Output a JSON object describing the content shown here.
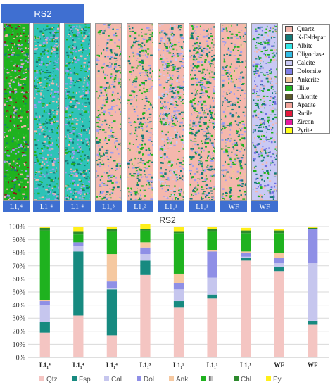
{
  "header": {
    "title": "RS2"
  },
  "strips": [
    {
      "label": "L1₁⁴",
      "colors": [
        "#1fb21f",
        "#27c127",
        "#f4b7ad",
        "#137a76",
        "#9d9df0",
        "#8b1a1a"
      ]
    },
    {
      "label": "L1₁⁴",
      "colors": [
        "#2ec3b7",
        "#137a76",
        "#1fb21f",
        "#f4b7ad",
        "#9d9df0"
      ]
    },
    {
      "label": "L1₁⁴",
      "colors": [
        "#2ec3b7",
        "#137a76",
        "#1fb21f",
        "#f4b7ad",
        "#9d9df0"
      ]
    },
    {
      "label": "L1₁³",
      "colors": [
        "#f4b7ad",
        "#1fb21f",
        "#137a76",
        "#9d9df0",
        "#f1c79a"
      ]
    },
    {
      "label": "L1₁²",
      "colors": [
        "#f4b7ad",
        "#1fb21f",
        "#137a76",
        "#9d9df0",
        "#f1c79a"
      ]
    },
    {
      "label": "L1₁¹",
      "colors": [
        "#f4b7ad",
        "#9d9df0",
        "#1fb21f",
        "#137a76",
        "#c9c9f4"
      ]
    },
    {
      "label": "L1₁¹",
      "colors": [
        "#f4b7ad",
        "#1fb21f",
        "#137a76",
        "#9d9df0"
      ]
    },
    {
      "label": "WF",
      "colors": [
        "#f4b7ad",
        "#1fb21f",
        "#9d9df0",
        "#137a76",
        "#f1c79a"
      ]
    },
    {
      "label": "WF",
      "colors": [
        "#c9c9f4",
        "#6f6fe0",
        "#f4b7ad",
        "#137a76",
        "#1fb21f"
      ]
    }
  ],
  "legend": {
    "items": [
      {
        "label": "Quartz",
        "color": "#f4b7ad"
      },
      {
        "label": "K-Feldspar",
        "color": "#137a76"
      },
      {
        "label": "Albite",
        "color": "#33e6e6"
      },
      {
        "label": "Oligoclase",
        "color": "#33bde6"
      },
      {
        "label": "Calcite",
        "color": "#c9c9f4"
      },
      {
        "label": "Dolomite",
        "color": "#7f7fe6"
      },
      {
        "label": "Ankerite",
        "color": "#f1c79a"
      },
      {
        "label": "Illite",
        "color": "#1fb21f"
      },
      {
        "label": "Chlorite",
        "color": "#5a5a2a"
      },
      {
        "label": "Apatite",
        "color": "#f2a49a"
      },
      {
        "label": "Rutile",
        "color": "#e6193c"
      },
      {
        "label": "Zircon",
        "color": "#e619a0"
      },
      {
        "label": "Pyrite",
        "color": "#ffff1a"
      }
    ]
  },
  "chart_data": {
    "type": "bar",
    "stacked": true,
    "title": "RS2",
    "categories": [
      "L1₁⁴",
      "L1₁⁴",
      "L1₁⁴",
      "L1₁³",
      "L1₁²",
      "L1₁¹",
      "L1₁¹",
      "WF",
      "WF"
    ],
    "ylim": [
      0,
      100
    ],
    "yticks": [
      "0%",
      "10%",
      "20%",
      "30%",
      "40%",
      "50%",
      "60%",
      "70%",
      "80%",
      "90%",
      "100%"
    ],
    "grid": true,
    "legend_position": "bottom",
    "series": [
      {
        "name": "Qtz",
        "color": "#f4c5c2",
        "values": [
          19,
          32,
          17,
          63,
          38,
          45,
          74,
          66,
          25
        ]
      },
      {
        "name": "Fsp",
        "color": "#178a80",
        "values": [
          8,
          49,
          35,
          11,
          5,
          3,
          2,
          3,
          3
        ]
      },
      {
        "name": "Cal",
        "color": "#c6c6ee",
        "values": [
          13,
          4,
          1,
          5,
          9,
          13,
          1,
          3,
          44
        ]
      },
      {
        "name": "Dol",
        "color": "#8f8fe6",
        "values": [
          3,
          3,
          5,
          5,
          5,
          20,
          3,
          4,
          26
        ]
      },
      {
        "name": "Ank",
        "color": "#f5c8a0",
        "values": [
          1,
          0,
          21,
          4,
          7,
          1,
          1,
          4,
          0
        ]
      },
      {
        "name": "Ill",
        "color": "#1fb21f",
        "values": [
          53,
          6,
          17,
          9,
          31,
          14,
          14,
          15,
          0
        ]
      },
      {
        "name": "Chl",
        "color": "#2d8a2d",
        "values": [
          2,
          2,
          2,
          1,
          1,
          2,
          2,
          2,
          1
        ]
      },
      {
        "name": "Py",
        "color": "#ffef1a",
        "values": [
          1,
          4,
          2,
          4,
          4,
          2,
          2,
          1,
          1
        ]
      }
    ]
  }
}
